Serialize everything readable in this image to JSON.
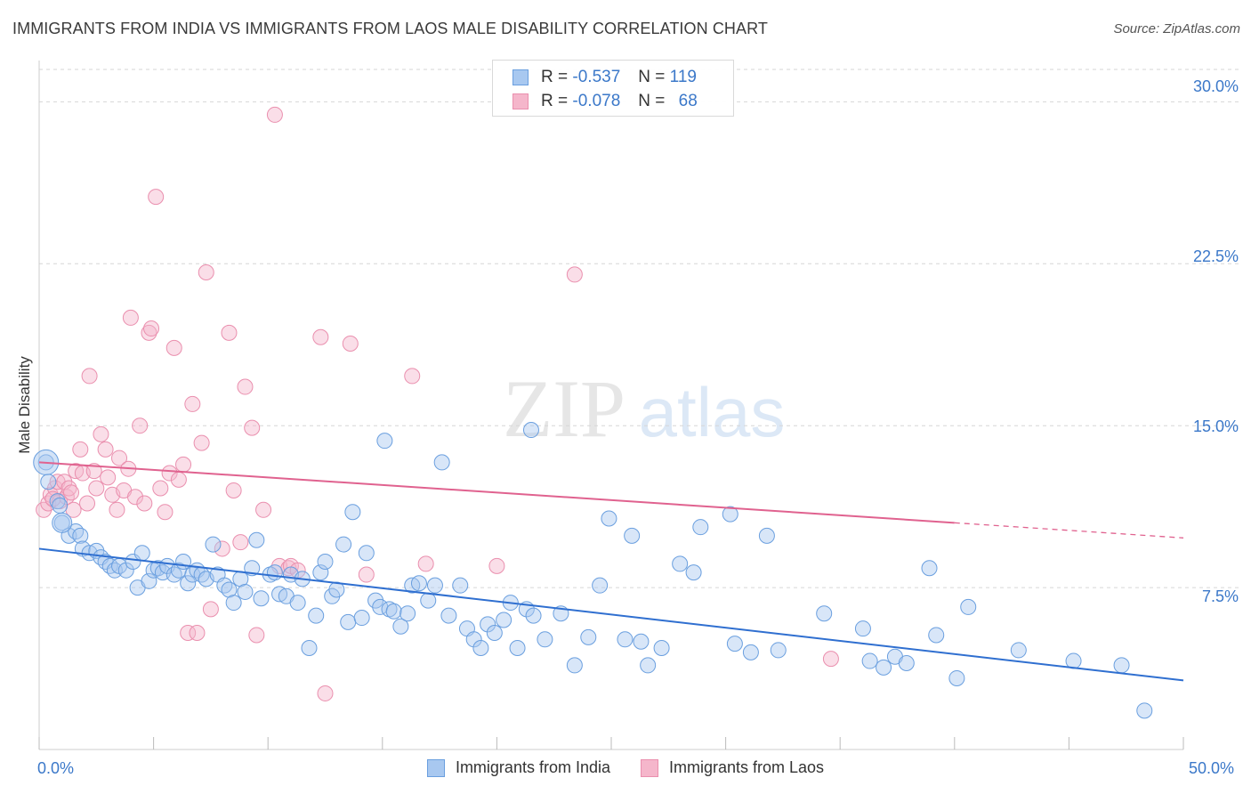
{
  "header": {
    "title": "IMMIGRANTS FROM INDIA VS IMMIGRANTS FROM LAOS MALE DISABILITY CORRELATION CHART",
    "source": "Source: ZipAtlas.com"
  },
  "watermark": {
    "zip": "ZIP",
    "atlas": "atlas"
  },
  "colors": {
    "india_fill": "#a8c8f0",
    "india_stroke": "#6a9fdf",
    "india_line": "#2f6fd0",
    "laos_fill": "#f5b6cb",
    "laos_stroke": "#ea8fae",
    "laos_line": "#e0628f",
    "grid": "#d6d6d6",
    "tick_label": "#3b78c9"
  },
  "legend_top": {
    "rows": [
      {
        "r_label": "R =",
        "r_value": "-0.537",
        "n_label": "N =",
        "n_value": "119"
      },
      {
        "r_label": "R =",
        "r_value": "-0.078",
        "n_label": "N =",
        "n_value": "68"
      }
    ]
  },
  "legend_bottom": [
    "Immigrants from India",
    "Immigrants from Laos"
  ],
  "chart_data": {
    "type": "scatter",
    "title": "IMMIGRANTS FROM INDIA VS IMMIGRANTS FROM LAOS MALE DISABILITY CORRELATION CHART",
    "xlabel": "",
    "ylabel": "Male Disability",
    "xlim": [
      0,
      50
    ],
    "ylim": [
      0,
      31.5
    ],
    "x_tick_labels": [
      "0.0%",
      "50.0%"
    ],
    "y_ticks": [
      7.5,
      15.0,
      22.5,
      30.0
    ],
    "y_tick_labels": [
      "7.5%",
      "15.0%",
      "22.5%",
      "30.0%"
    ],
    "grid": "horizontal dashed",
    "legend_placement": "bottom",
    "series": [
      {
        "name": "Immigrants from India",
        "trend": {
          "x": [
            0,
            50
          ],
          "y": [
            9.3,
            3.2
          ],
          "dashed_from": null
        },
        "points": [
          [
            0.3,
            13.3
          ],
          [
            0.4,
            12.4
          ],
          [
            0.8,
            11.5
          ],
          [
            0.9,
            11.3
          ],
          [
            1.0,
            10.5
          ],
          [
            1.3,
            9.9
          ],
          [
            1.6,
            10.1
          ],
          [
            1.8,
            9.9
          ],
          [
            1.9,
            9.3
          ],
          [
            2.2,
            9.1
          ],
          [
            2.5,
            9.2
          ],
          [
            2.7,
            8.9
          ],
          [
            2.9,
            8.7
          ],
          [
            3.1,
            8.5
          ],
          [
            3.3,
            8.3
          ],
          [
            3.5,
            8.5
          ],
          [
            3.8,
            8.3
          ],
          [
            4.1,
            8.7
          ],
          [
            4.3,
            7.5
          ],
          [
            4.5,
            9.1
          ],
          [
            4.8,
            7.8
          ],
          [
            5.0,
            8.3
          ],
          [
            5.2,
            8.4
          ],
          [
            5.4,
            8.2
          ],
          [
            5.6,
            8.5
          ],
          [
            5.9,
            8.1
          ],
          [
            6.1,
            8.3
          ],
          [
            6.3,
            8.7
          ],
          [
            6.5,
            7.7
          ],
          [
            6.7,
            8.1
          ],
          [
            6.9,
            8.3
          ],
          [
            7.1,
            8.1
          ],
          [
            7.3,
            7.9
          ],
          [
            7.6,
            9.5
          ],
          [
            7.8,
            8.1
          ],
          [
            8.1,
            7.6
          ],
          [
            8.3,
            7.4
          ],
          [
            8.5,
            6.8
          ],
          [
            8.8,
            7.9
          ],
          [
            9.0,
            7.3
          ],
          [
            9.3,
            8.4
          ],
          [
            9.5,
            9.7
          ],
          [
            9.7,
            7.0
          ],
          [
            10.1,
            8.1
          ],
          [
            10.3,
            8.2
          ],
          [
            10.5,
            7.2
          ],
          [
            10.8,
            7.1
          ],
          [
            11.0,
            8.1
          ],
          [
            11.3,
            6.8
          ],
          [
            11.5,
            7.9
          ],
          [
            11.8,
            4.7
          ],
          [
            12.1,
            6.2
          ],
          [
            12.3,
            8.2
          ],
          [
            12.5,
            8.7
          ],
          [
            12.8,
            7.1
          ],
          [
            13.0,
            7.4
          ],
          [
            13.3,
            9.5
          ],
          [
            13.5,
            5.9
          ],
          [
            13.7,
            11.0
          ],
          [
            14.1,
            6.1
          ],
          [
            14.3,
            9.1
          ],
          [
            14.7,
            6.9
          ],
          [
            14.9,
            6.6
          ],
          [
            15.1,
            14.3
          ],
          [
            15.3,
            6.5
          ],
          [
            15.5,
            6.4
          ],
          [
            15.8,
            5.7
          ],
          [
            16.1,
            6.3
          ],
          [
            16.3,
            7.6
          ],
          [
            16.6,
            7.7
          ],
          [
            17.0,
            6.9
          ],
          [
            17.3,
            7.6
          ],
          [
            17.6,
            13.3
          ],
          [
            17.9,
            6.2
          ],
          [
            18.4,
            7.6
          ],
          [
            18.7,
            5.6
          ],
          [
            19.0,
            5.1
          ],
          [
            19.3,
            4.7
          ],
          [
            19.6,
            5.8
          ],
          [
            19.9,
            5.4
          ],
          [
            20.3,
            6.0
          ],
          [
            20.6,
            6.8
          ],
          [
            20.9,
            4.7
          ],
          [
            21.3,
            6.5
          ],
          [
            21.6,
            6.2
          ],
          [
            22.1,
            5.1
          ],
          [
            21.5,
            14.8
          ],
          [
            22.8,
            6.3
          ],
          [
            23.4,
            3.9
          ],
          [
            24.0,
            5.2
          ],
          [
            24.5,
            7.6
          ],
          [
            24.9,
            10.7
          ],
          [
            25.6,
            5.1
          ],
          [
            25.9,
            9.9
          ],
          [
            26.3,
            5.0
          ],
          [
            26.6,
            3.9
          ],
          [
            27.2,
            4.7
          ],
          [
            28.0,
            8.6
          ],
          [
            28.6,
            8.2
          ],
          [
            28.9,
            10.3
          ],
          [
            30.2,
            10.9
          ],
          [
            30.4,
            4.9
          ],
          [
            31.1,
            4.5
          ],
          [
            31.8,
            9.9
          ],
          [
            32.3,
            4.6
          ],
          [
            34.3,
            6.3
          ],
          [
            36.0,
            5.6
          ],
          [
            36.3,
            4.1
          ],
          [
            36.9,
            3.8
          ],
          [
            37.4,
            4.3
          ],
          [
            37.9,
            4.0
          ],
          [
            38.9,
            8.4
          ],
          [
            39.2,
            5.3
          ],
          [
            40.1,
            3.3
          ],
          [
            40.6,
            6.6
          ],
          [
            42.8,
            4.6
          ],
          [
            45.2,
            4.1
          ],
          [
            47.3,
            3.9
          ],
          [
            48.3,
            1.8
          ]
        ]
      },
      {
        "name": "Immigrants from Laos",
        "trend": {
          "x": [
            0,
            50
          ],
          "y": [
            13.3,
            9.8
          ],
          "dashed_from": 40
        },
        "points": [
          [
            0.2,
            11.1
          ],
          [
            0.4,
            11.4
          ],
          [
            0.5,
            11.8
          ],
          [
            0.7,
            12.1
          ],
          [
            0.8,
            12.4
          ],
          [
            0.9,
            11.5
          ],
          [
            1.1,
            12.4
          ],
          [
            1.2,
            11.7
          ],
          [
            1.3,
            12.1
          ],
          [
            1.4,
            11.9
          ],
          [
            1.6,
            12.9
          ],
          [
            1.8,
            13.9
          ],
          [
            1.9,
            12.8
          ],
          [
            2.1,
            11.4
          ],
          [
            2.2,
            17.3
          ],
          [
            2.4,
            12.9
          ],
          [
            2.5,
            12.1
          ],
          [
            2.7,
            14.6
          ],
          [
            2.9,
            13.9
          ],
          [
            3.0,
            12.6
          ],
          [
            3.2,
            11.8
          ],
          [
            3.4,
            11.1
          ],
          [
            3.5,
            13.5
          ],
          [
            3.7,
            12.0
          ],
          [
            3.9,
            13.0
          ],
          [
            4.0,
            20.0
          ],
          [
            4.2,
            11.7
          ],
          [
            4.4,
            15.0
          ],
          [
            4.6,
            11.4
          ],
          [
            4.8,
            19.3
          ],
          [
            4.9,
            19.5
          ],
          [
            5.1,
            25.6
          ],
          [
            5.3,
            12.1
          ],
          [
            5.5,
            11.0
          ],
          [
            5.7,
            12.8
          ],
          [
            5.9,
            18.6
          ],
          [
            6.1,
            12.5
          ],
          [
            6.3,
            13.2
          ],
          [
            6.5,
            5.4
          ],
          [
            6.7,
            16.0
          ],
          [
            6.9,
            5.4
          ],
          [
            7.1,
            14.2
          ],
          [
            7.3,
            22.1
          ],
          [
            7.5,
            6.5
          ],
          [
            8.0,
            9.3
          ],
          [
            8.3,
            19.3
          ],
          [
            8.5,
            12.0
          ],
          [
            8.8,
            9.6
          ],
          [
            9.0,
            16.8
          ],
          [
            9.3,
            14.9
          ],
          [
            9.5,
            5.3
          ],
          [
            9.8,
            11.1
          ],
          [
            10.3,
            29.4
          ],
          [
            10.5,
            8.5
          ],
          [
            10.9,
            8.4
          ],
          [
            11.0,
            8.5
          ],
          [
            11.3,
            8.3
          ],
          [
            12.3,
            19.1
          ],
          [
            12.5,
            2.6
          ],
          [
            13.6,
            18.8
          ],
          [
            14.3,
            8.1
          ],
          [
            16.3,
            17.3
          ],
          [
            16.9,
            8.6
          ],
          [
            20.0,
            8.5
          ],
          [
            23.4,
            22.0
          ],
          [
            34.6,
            4.2
          ],
          [
            1.5,
            11.1
          ],
          [
            0.6,
            11.6
          ]
        ]
      }
    ]
  }
}
